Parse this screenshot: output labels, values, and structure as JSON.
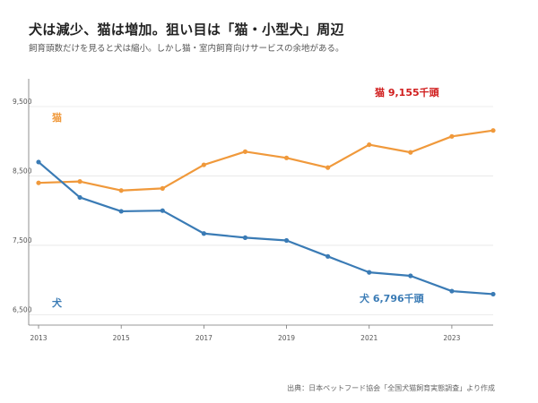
{
  "header": {
    "title": "犬は減少、猫は増加。狙い目は「猫・小型犬」周辺",
    "subtitle": "飼育頭数だけを見ると犬は縮小。しかし猫・室内飼育向けサービスの余地がある。"
  },
  "source": "出典：日本ペットフード協会「全国犬猫飼育実態調査」より作成",
  "chart_data": {
    "type": "line",
    "x": [
      2013,
      2014,
      2015,
      2016,
      2017,
      2018,
      2019,
      2020,
      2021,
      2022,
      2023,
      2024
    ],
    "x_ticks": [
      "2013",
      "2015",
      "2017",
      "2019",
      "2021",
      "2023"
    ],
    "y_ticks": [
      "6,500",
      "7,500",
      "8,500",
      "9,500"
    ],
    "ylim": [
      6350,
      9900
    ],
    "grid": true,
    "series": [
      {
        "name": "猫",
        "color": "#f0993b",
        "values": [
          8400,
          8420,
          8290,
          8320,
          8660,
          8850,
          8760,
          8620,
          8950,
          8840,
          9070,
          9155
        ],
        "end_label": "猫 9,155千頭",
        "end_label_color": "#d01c1c"
      },
      {
        "name": "犬",
        "color": "#3a7bb5",
        "values": [
          8700,
          8190,
          7990,
          8000,
          7670,
          7610,
          7570,
          7340,
          7110,
          7060,
          6840,
          6796
        ],
        "end_label": "犬 6,796千頭",
        "end_label_color": "#3a7bb5"
      }
    ]
  }
}
